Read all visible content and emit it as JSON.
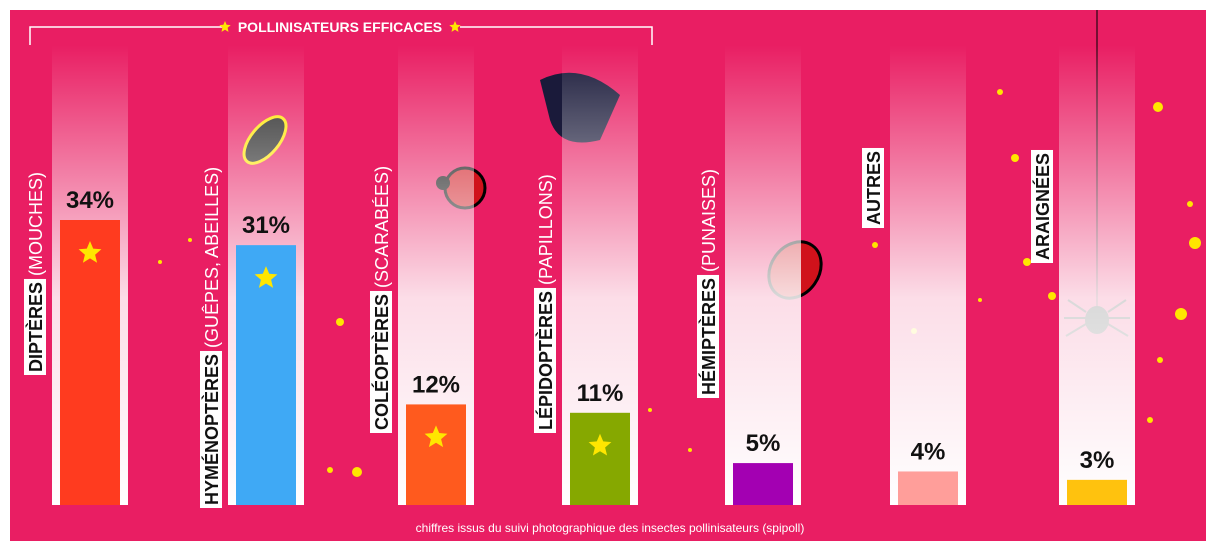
{
  "chart_data": {
    "type": "bar",
    "annotation": "POLLINISATEURS EFFICACES",
    "categories": [
      "DIPTÈRES",
      "HYMÉNOPTÈRES",
      "COLÉOPTÈRES",
      "LÉPIDOPTÈRES",
      "HÉMIPTÈRES",
      "AUTRES",
      "ARAIGNÉES"
    ],
    "category_notes": [
      "(MOUCHES)",
      "(GUÊPES, ABEILLES)",
      "(SCARABÉES)",
      "(PAPILLONS)",
      "(PUNAISES)",
      null,
      null
    ],
    "values": [
      34,
      31,
      12,
      11,
      5,
      4,
      3
    ],
    "value_labels": [
      "34%",
      "31%",
      "12%",
      "11%",
      "5%",
      "4%",
      "3%"
    ],
    "colors": [
      "#ff3b1f",
      "#3fa9f5",
      "#ff5a1e",
      "#86a800",
      "#a300b2",
      "#ff9e9a",
      "#ffc20e"
    ],
    "efficient": [
      true,
      true,
      true,
      true,
      false,
      false,
      false
    ],
    "footnote": "chiffres issus du suivi photographique des insectes pollinisateurs (spipoll)"
  }
}
